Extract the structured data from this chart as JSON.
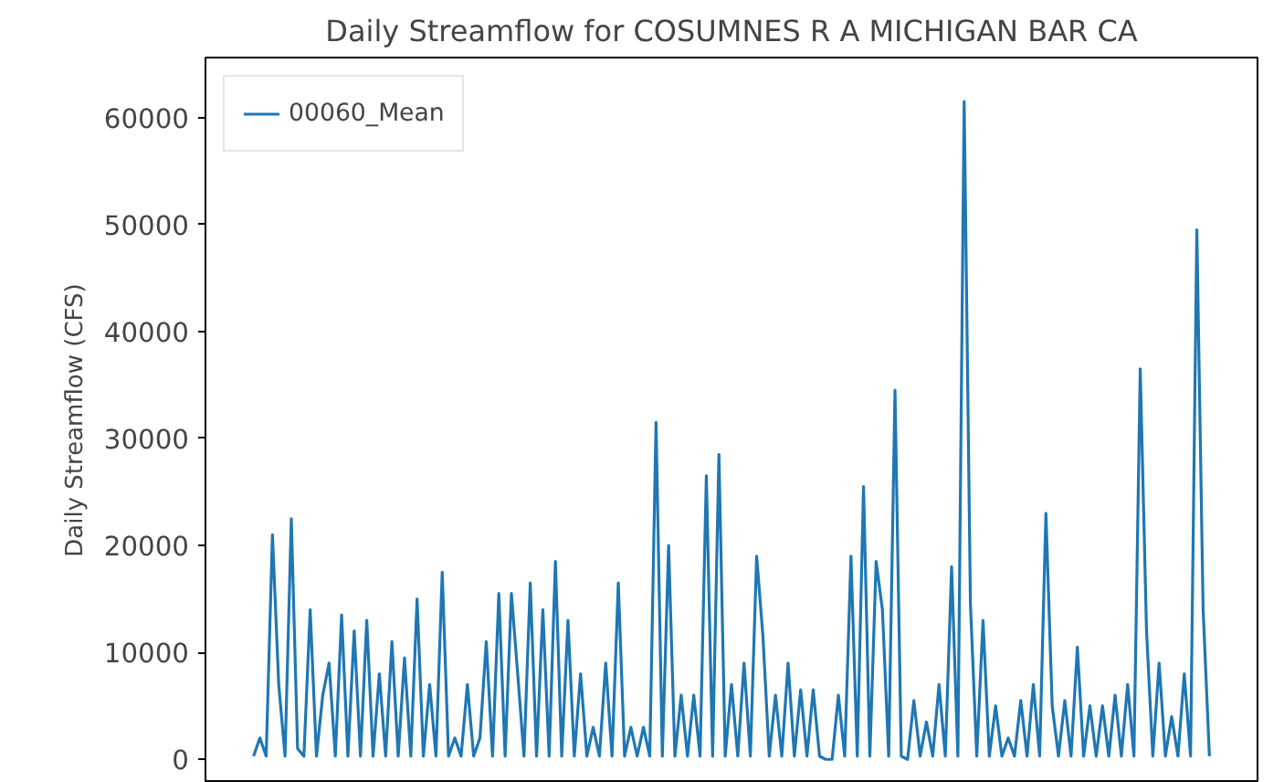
{
  "chart_data": {
    "type": "line",
    "title": "Daily Streamflow for COSUMNES R A MICHIGAN BAR CA",
    "ylabel": "Daily Streamflow (CFS)",
    "ylim": [
      -2200,
      65600
    ],
    "yticks": [
      0,
      10000,
      20000,
      30000,
      40000,
      50000,
      60000
    ],
    "grid": false,
    "legend": "top left",
    "tick_labels": "y",
    "categories": [
      null,
      null,
      null,
      null,
      null,
      null,
      null,
      null,
      null,
      null,
      null,
      null,
      null,
      null,
      null,
      null,
      null,
      null,
      null,
      null,
      null,
      null,
      null,
      null,
      null,
      null,
      null,
      null,
      null,
      null,
      null,
      null,
      null,
      null,
      null,
      null,
      null,
      null,
      null,
      null,
      null,
      null,
      null,
      null,
      null,
      null,
      null,
      null,
      null,
      null,
      null,
      null,
      null,
      null,
      null,
      null,
      null,
      null,
      null,
      null,
      null,
      null,
      null,
      null,
      null,
      null,
      null,
      null,
      null,
      null,
      null,
      null,
      null,
      null,
      null,
      null,
      null,
      null,
      null,
      null,
      null,
      null,
      null,
      null,
      null,
      null,
      null,
      null,
      null,
      null,
      null,
      null,
      null,
      null,
      null,
      null,
      null,
      null,
      null,
      null,
      null,
      null,
      null,
      null,
      null,
      null,
      null,
      null,
      null,
      null,
      null,
      null,
      null,
      null,
      null,
      null,
      null,
      null,
      null,
      null,
      null,
      null,
      null,
      null,
      null,
      null,
      null,
      null,
      null,
      null,
      null,
      null,
      null,
      null,
      null,
      null,
      null,
      null,
      null,
      null,
      null,
      null,
      null,
      null,
      null,
      null,
      null,
      null,
      null,
      null,
      null,
      null,
      null
    ],
    "series": [
      {
        "name": "00060_Mean",
        "color": "#1f77b4",
        "values": [
          300,
          2000,
          300,
          21000,
          7000,
          300,
          22500,
          1000,
          300,
          14000,
          300,
          6000,
          9000,
          300,
          13500,
          300,
          12000,
          300,
          13000,
          300,
          8000,
          300,
          11000,
          300,
          9500,
          300,
          15000,
          300,
          7000,
          300,
          17500,
          300,
          2000,
          300,
          7000,
          300,
          2000,
          11000,
          300,
          15500,
          300,
          15500,
          8000,
          300,
          16500,
          300,
          14000,
          300,
          18500,
          300,
          13000,
          300,
          8000,
          300,
          3000,
          300,
          9000,
          300,
          16500,
          300,
          3000,
          300,
          3000,
          300,
          31500,
          300,
          20000,
          300,
          6000,
          300,
          6000,
          300,
          26500,
          300,
          28500,
          300,
          7000,
          300,
          9000,
          300,
          19000,
          11500,
          300,
          6000,
          300,
          9000,
          300,
          6500,
          300,
          6500,
          300,
          0,
          0,
          6000,
          300,
          19000,
          300,
          25500,
          300,
          18500,
          14000,
          300,
          34500,
          300,
          0,
          5500,
          300,
          3500,
          300,
          7000,
          300,
          18000,
          300,
          61500,
          14500,
          300,
          13000,
          300,
          5000,
          300,
          2000,
          300,
          5500,
          300,
          7000,
          300,
          23000,
          5000,
          300,
          5500,
          300,
          10500,
          300,
          5000,
          300,
          5000,
          300,
          6000,
          300,
          7000,
          300,
          36500,
          12000,
          300,
          9000,
          300,
          4000,
          300,
          8000,
          300,
          49500,
          14000,
          300
        ]
      }
    ]
  }
}
